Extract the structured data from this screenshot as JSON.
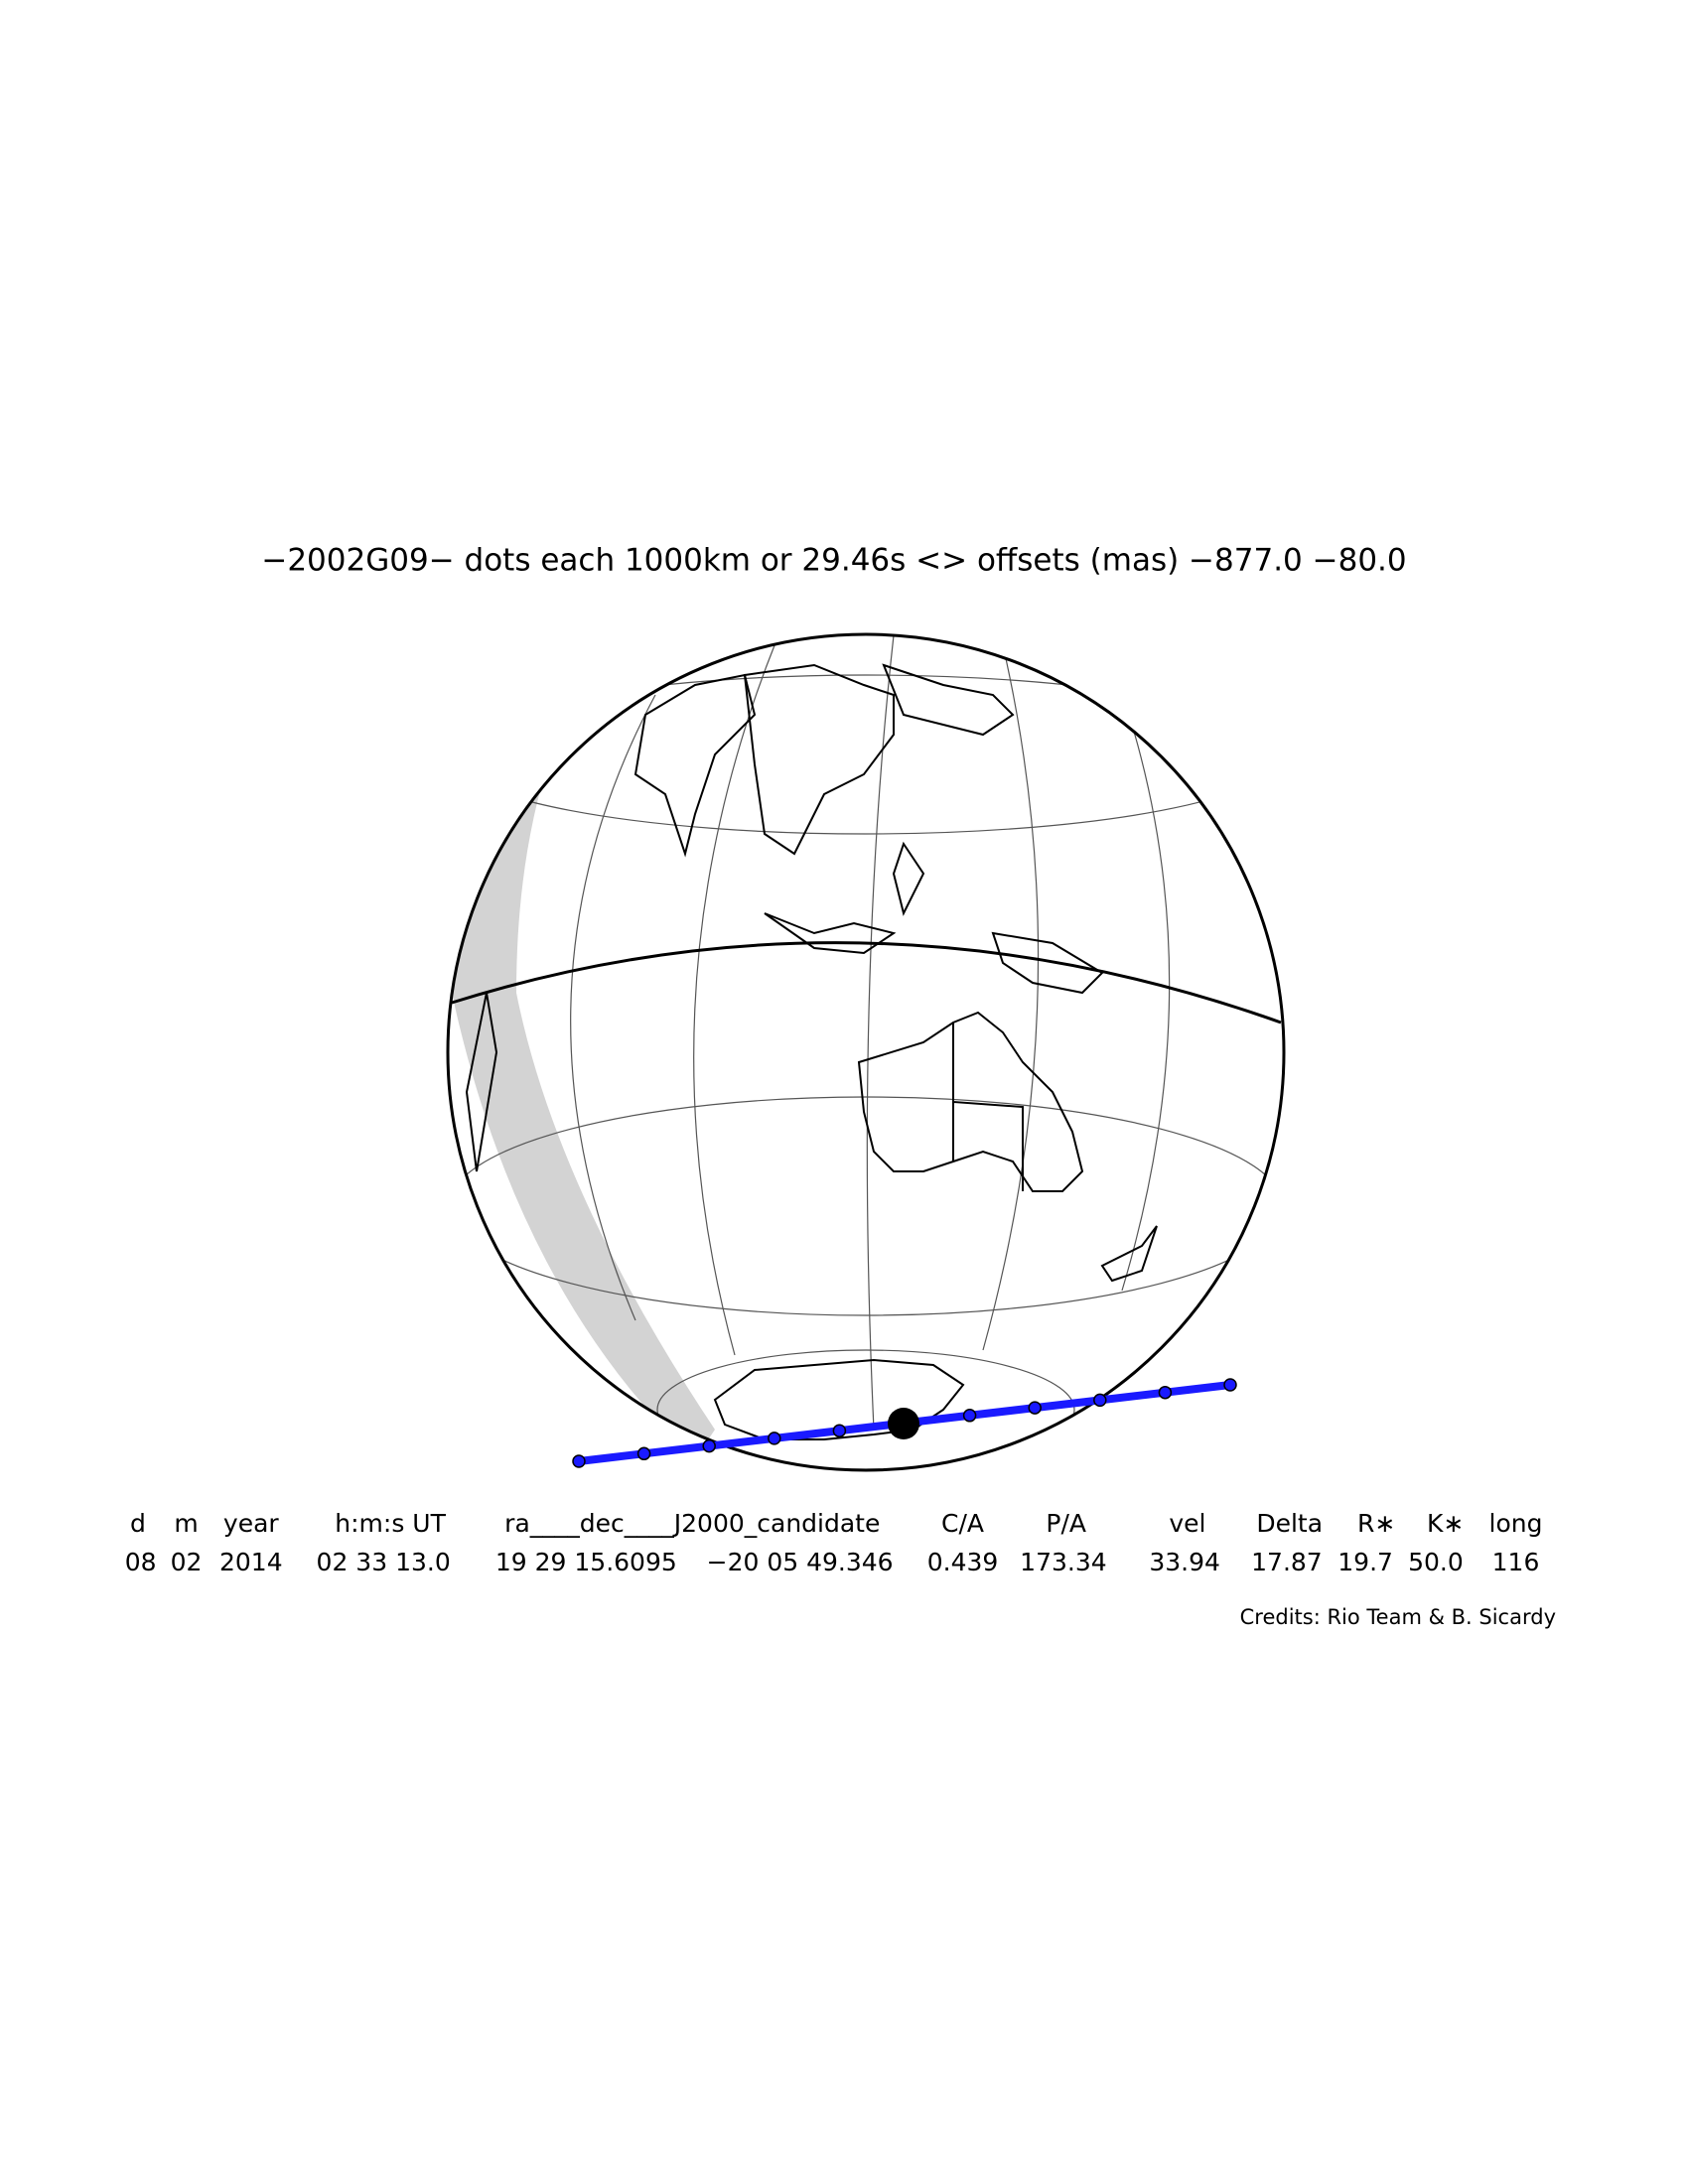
{
  "title": "−2002G09− dots each 1000km or 29.46s <> offsets (mas) −877.0  −80.0",
  "table": {
    "header": [
      "d",
      "m",
      "year",
      "h:m:s UT",
      "ra____dec____J2000_candidate",
      "C/A",
      "P/A",
      "vel",
      "Delta",
      "R∗",
      "K∗",
      "long"
    ],
    "row": [
      "08",
      "02",
      "2014",
      "02 33 13.0",
      "19 29 15.6095",
      "−20 05 49.346",
      "0.439",
      "173.34",
      "33.94",
      "17.87",
      "19.7",
      "50.0",
      "116"
    ]
  },
  "credits": "Credits: Rio Team & B. Sicardy"
}
